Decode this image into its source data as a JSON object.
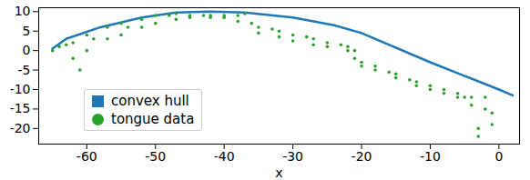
{
  "chart_data": {
    "type": "scatter",
    "x_label": "x",
    "xlim": [
      -67,
      3
    ],
    "xticks": [
      -60,
      -50,
      -40,
      -30,
      -20,
      -10,
      0
    ],
    "ylim": [
      -24,
      11
    ],
    "yticks": [
      -20,
      -15,
      -10,
      -5,
      0,
      5,
      10
    ],
    "legend": "lower left",
    "series": [
      {
        "name": "convex hull",
        "type": "line",
        "color": "#1f77b4",
        "marker": "square",
        "x": [
          -65,
          -63,
          -58,
          -52,
          -47,
          -42,
          -37,
          -30,
          -24,
          -20,
          -10,
          0,
          2
        ],
        "values": [
          0.5,
          3,
          6,
          8.5,
          9.8,
          10,
          9.8,
          8.5,
          6.5,
          4.5,
          -3,
          -10,
          -11.5
        ]
      },
      {
        "name": "tongue data",
        "type": "scatter",
        "color": "#2ca02c",
        "marker": "circle",
        "x": [
          -65,
          -64,
          -63,
          -62,
          -62,
          -61,
          -60,
          -60,
          -59,
          -57,
          -57,
          -55,
          -55,
          -54,
          -52,
          -52,
          -50,
          -50,
          -48,
          -47,
          -47,
          -45,
          -45,
          -43,
          -42,
          -42,
          -40,
          -40,
          -38,
          -38,
          -37,
          -36,
          -35,
          -35,
          -33,
          -32,
          -32,
          -30,
          -30,
          -28,
          -27,
          -27,
          -25,
          -25,
          -23,
          -22,
          -22,
          -21,
          -21,
          -20,
          -20,
          -18,
          -18,
          -16,
          -15,
          -15,
          -13,
          -12,
          -12,
          -10,
          -10,
          -8,
          -8,
          -6,
          -6,
          -5,
          -4,
          -4,
          -3,
          -3,
          -2,
          -2,
          -1,
          -1
        ],
        "values": [
          0,
          1,
          1.5,
          2,
          -2,
          -5,
          4,
          0,
          3,
          6,
          3,
          7,
          4,
          6,
          8,
          6,
          9,
          7,
          9,
          9.5,
          8,
          9,
          8.5,
          9,
          9,
          8.5,
          9,
          8.5,
          9,
          7.5,
          9.5,
          7,
          6,
          4.5,
          5.5,
          5,
          3.5,
          4,
          2.5,
          3.5,
          3,
          1.5,
          2,
          1,
          1.5,
          1,
          0,
          0,
          -2,
          -3,
          -4,
          -4,
          -5,
          -5.5,
          -6,
          -7,
          -7.5,
          -8,
          -9,
          -9,
          -10,
          -10,
          -11,
          -11,
          -12,
          -12,
          -12,
          -14,
          -20,
          -22,
          -12,
          -15,
          -16,
          -19
        ]
      }
    ]
  }
}
